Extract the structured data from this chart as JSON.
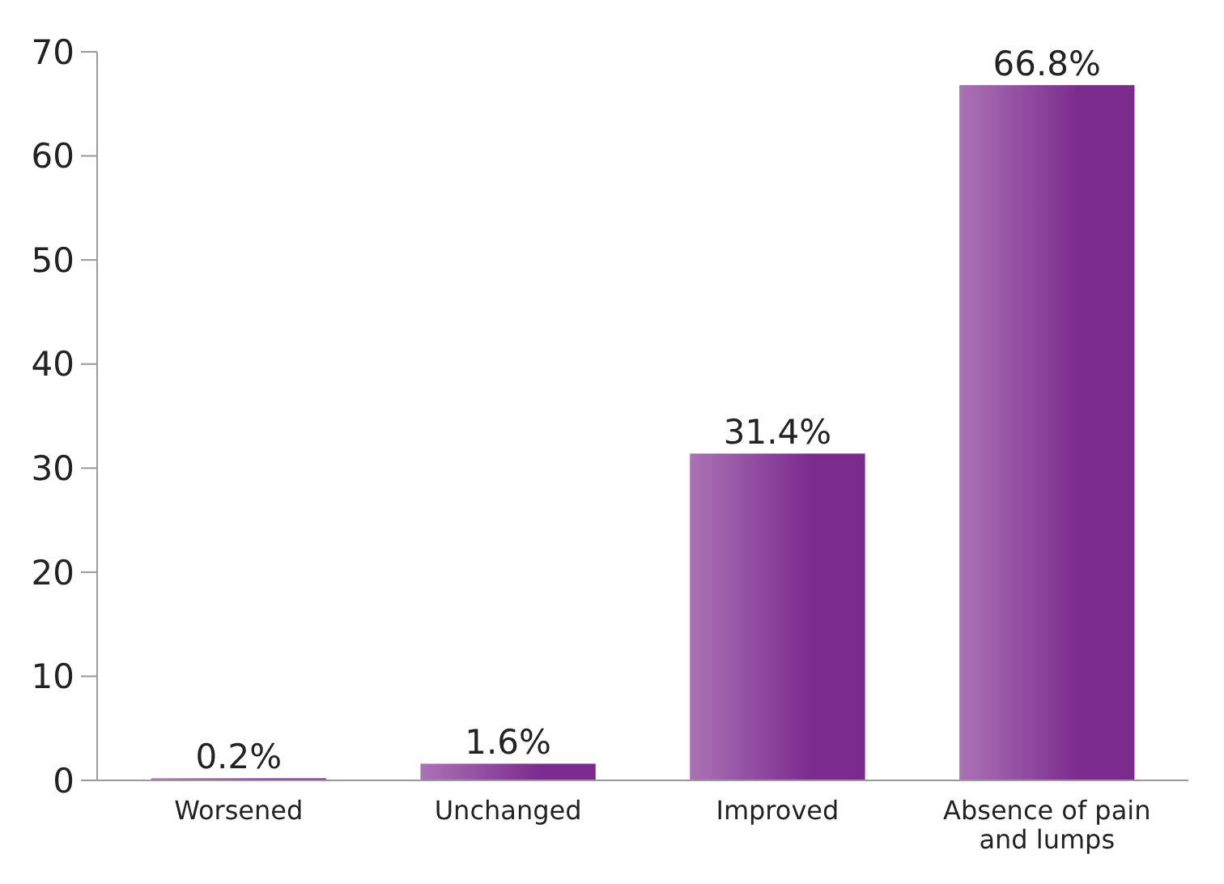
{
  "chart_data": {
    "type": "bar",
    "categories": [
      "Worsened",
      "Unchanged",
      "Improved",
      "Absence of pain and lumps"
    ],
    "values": [
      0.2,
      1.6,
      31.4,
      66.8
    ],
    "value_labels": [
      "0.2%",
      "1.6%",
      "31.4%",
      "66.8%"
    ],
    "color": "#7b2a8e",
    "ylim": [
      0,
      70
    ],
    "yticks": [
      0,
      10,
      20,
      30,
      40,
      50,
      60,
      70
    ],
    "grid": false
  }
}
